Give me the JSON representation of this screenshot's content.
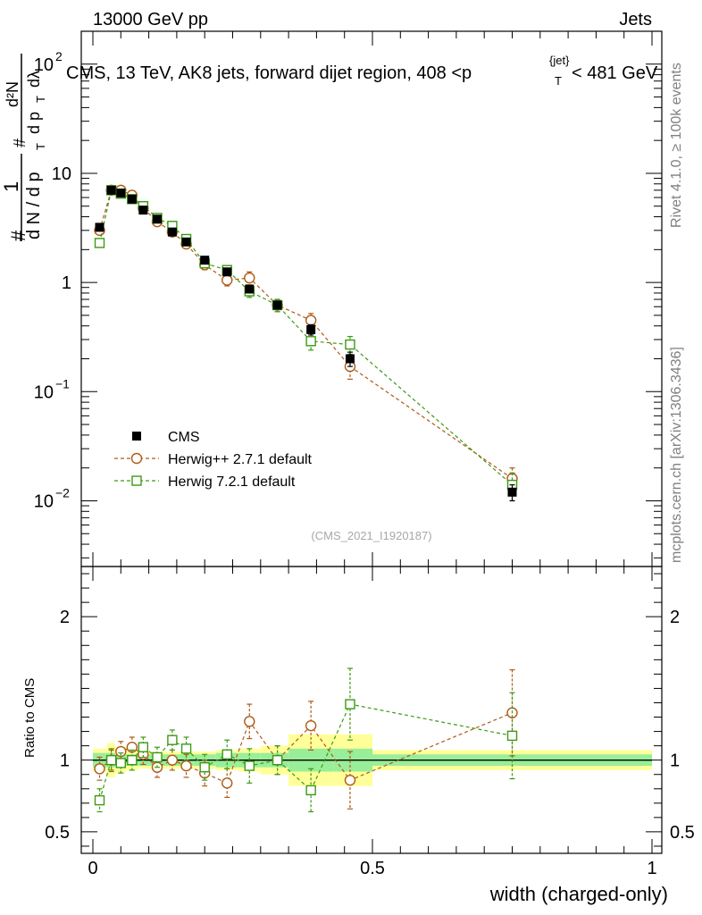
{
  "header": {
    "energy_label": "13000 GeV pp",
    "category_label": "Jets"
  },
  "plot_title": {
    "main": "CMS, 13 TeV, AK8 jets, forward dijet region, 408 <p",
    "sub_T": "T",
    "sup_jet": "{jet}",
    "tail": "< 481 GeV"
  },
  "y_axis_label_main": {
    "hash": "#",
    "numerator": "1",
    "denominator": "d N / d p",
    "den_sub": "T",
    "hash2": "#",
    "numerator2": "d²N",
    "denominator2": "d p",
    "den2_sub": "T",
    "den2_tail": "dλ"
  },
  "side_labels": {
    "rivet": "Rivet 4.1.0, ≥ 100k events",
    "mcplots": "mcplots.cern.ch [arXiv:1306.3436]"
  },
  "watermark": "(CMS_2021_I1920187)",
  "ratio_ylabel": "Ratio to CMS",
  "x_axis_label": "width (charged-only)",
  "legend": [
    {
      "label": "CMS",
      "color": "#000000",
      "marker": "filled-square"
    },
    {
      "label": "Herwig++ 2.7.1 default",
      "color": "#b05a14",
      "marker": "open-circle"
    },
    {
      "label": "Herwig 7.2.1 default",
      "color": "#3c9a14",
      "marker": "open-square"
    }
  ],
  "main_ticks": {
    "y_labels": [
      {
        "base": "10",
        "exp": "2",
        "value": 100
      },
      {
        "base": "10",
        "exp": "",
        "value": 10
      },
      {
        "base": "1",
        "exp": "",
        "value": 1
      },
      {
        "base": "10",
        "exp": "−1",
        "value": 0.1
      },
      {
        "base": "10",
        "exp": "−2",
        "value": 0.01
      }
    ]
  },
  "ratio_ticks": {
    "y_labels": [
      {
        "text": "2",
        "value": 2
      },
      {
        "text": "1",
        "value": 1
      },
      {
        "text": "0.5",
        "value": 0.5
      }
    ]
  },
  "x_ticks": [
    {
      "text": "0",
      "value": 0
    },
    {
      "text": "0.5",
      "value": 0.5
    },
    {
      "text": "1",
      "value": 1
    }
  ],
  "chart_data": [
    {
      "type": "scatter",
      "title": "CMS, 13 TeV, AK8 jets, forward dijet region, 408 < pT{jet} < 481 GeV",
      "xlabel": "width (charged-only)",
      "ylabel": "1/dN/dpT dN²/dpT dλ",
      "xlim": [
        0,
        1
      ],
      "ylim": [
        0.0025,
        200
      ],
      "yscale": "log",
      "x_bins": [
        0.0,
        0.025,
        0.04,
        0.06,
        0.08,
        0.1,
        0.13,
        0.155,
        0.18,
        0.22,
        0.26,
        0.3,
        0.35,
        0.43,
        0.5,
        1.0
      ],
      "series": [
        {
          "name": "CMS",
          "x": [
            0.012,
            0.033,
            0.05,
            0.07,
            0.09,
            0.115,
            0.142,
            0.167,
            0.2,
            0.24,
            0.28,
            0.33,
            0.39,
            0.46,
            0.75
          ],
          "y": [
            3.2,
            7.0,
            6.6,
            5.8,
            4.6,
            3.8,
            2.9,
            2.35,
            1.6,
            1.25,
            0.87,
            0.62,
            0.37,
            0.2,
            0.012
          ],
          "yerr": [
            0.2,
            0.3,
            0.3,
            0.25,
            0.2,
            0.18,
            0.15,
            0.12,
            0.09,
            0.08,
            0.06,
            0.05,
            0.04,
            0.03,
            0.002
          ]
        },
        {
          "name": "Herwig++ 2.7.1 default",
          "x": [
            0.012,
            0.033,
            0.05,
            0.07,
            0.09,
            0.115,
            0.142,
            0.167,
            0.2,
            0.24,
            0.28,
            0.33,
            0.39,
            0.46,
            0.75
          ],
          "y": [
            3.0,
            7.0,
            7.0,
            6.3,
            4.8,
            3.6,
            2.9,
            2.25,
            1.45,
            1.05,
            1.1,
            0.62,
            0.45,
            0.17,
            0.016
          ],
          "yerr": [
            0.25,
            0.4,
            0.4,
            0.35,
            0.3,
            0.25,
            0.2,
            0.18,
            0.14,
            0.12,
            0.15,
            0.08,
            0.07,
            0.04,
            0.004
          ]
        },
        {
          "name": "Herwig 7.2.1 default",
          "x": [
            0.012,
            0.033,
            0.05,
            0.07,
            0.09,
            0.115,
            0.142,
            0.167,
            0.2,
            0.24,
            0.28,
            0.33,
            0.39,
            0.46,
            0.75
          ],
          "y": [
            2.3,
            7.0,
            6.5,
            5.8,
            5.0,
            3.9,
            3.3,
            2.5,
            1.5,
            1.3,
            0.83,
            0.62,
            0.29,
            0.27,
            0.014
          ],
          "yerr": [
            0.2,
            0.4,
            0.4,
            0.35,
            0.3,
            0.25,
            0.22,
            0.2,
            0.14,
            0.12,
            0.1,
            0.08,
            0.05,
            0.05,
            0.004
          ]
        }
      ],
      "legend_position": "lower-left"
    },
    {
      "type": "scatter",
      "title": "",
      "xlabel": "width (charged-only)",
      "ylabel": "Ratio to CMS",
      "xlim": [
        0,
        1
      ],
      "ylim": [
        0.35,
        2.35
      ],
      "bands": {
        "x_bins": [
          0.0,
          0.025,
          0.04,
          0.06,
          0.08,
          0.1,
          0.13,
          0.155,
          0.18,
          0.22,
          0.26,
          0.3,
          0.35,
          0.43,
          0.5,
          1.0
        ],
        "stat": [
          0.05,
          0.05,
          0.04,
          0.04,
          0.04,
          0.04,
          0.04,
          0.04,
          0.04,
          0.05,
          0.05,
          0.05,
          0.08,
          0.08,
          0.04
        ],
        "total": [
          0.08,
          0.12,
          0.09,
          0.07,
          0.06,
          0.06,
          0.06,
          0.06,
          0.06,
          0.07,
          0.08,
          0.1,
          0.18,
          0.18,
          0.07
        ]
      },
      "series": [
        {
          "name": "Herwig++ 2.7.1 default",
          "x": [
            0.012,
            0.033,
            0.05,
            0.07,
            0.09,
            0.115,
            0.142,
            0.167,
            0.2,
            0.24,
            0.28,
            0.33,
            0.39,
            0.46,
            0.75
          ],
          "y": [
            0.94,
            1.0,
            1.06,
            1.09,
            1.04,
            0.95,
            1.0,
            0.96,
            0.91,
            0.84,
            1.27,
            1.0,
            1.24,
            0.86,
            1.33
          ],
          "yerr": [
            0.08,
            0.07,
            0.07,
            0.07,
            0.07,
            0.07,
            0.07,
            0.08,
            0.09,
            0.1,
            0.12,
            0.1,
            0.17,
            0.2,
            0.3
          ]
        },
        {
          "name": "Herwig 7.2.1 default",
          "x": [
            0.012,
            0.033,
            0.05,
            0.07,
            0.09,
            0.115,
            0.142,
            0.167,
            0.2,
            0.24,
            0.28,
            0.33,
            0.39,
            0.46,
            0.75
          ],
          "y": [
            0.72,
            1.0,
            0.98,
            1.0,
            1.09,
            1.02,
            1.14,
            1.08,
            0.95,
            1.04,
            0.96,
            1.0,
            0.79,
            1.39,
            1.17
          ],
          "yerr": [
            0.08,
            0.08,
            0.07,
            0.07,
            0.07,
            0.07,
            0.07,
            0.08,
            0.09,
            0.1,
            0.12,
            0.1,
            0.15,
            0.25,
            0.3
          ]
        }
      ]
    }
  ]
}
